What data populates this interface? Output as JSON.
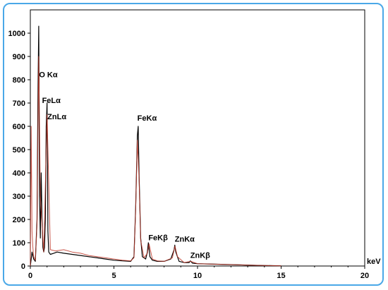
{
  "chart_data": {
    "type": "line",
    "title": "",
    "xlabel": "keV",
    "ylabel": "",
    "xlim": [
      0,
      20
    ],
    "ylim": [
      0,
      1100
    ],
    "xticks": [
      0,
      5,
      10,
      15,
      20
    ],
    "yticks": [
      0,
      100,
      200,
      300,
      400,
      500,
      600,
      700,
      800,
      900,
      1000
    ],
    "grid": false,
    "colors": {
      "frame": "#4aa8e8",
      "series_black": "#000000",
      "series_red": "#c0392b"
    },
    "series": [
      {
        "color": "#000000",
        "x": [
          0.0,
          0.1,
          0.2,
          0.3,
          0.4,
          0.45,
          0.5,
          0.52,
          0.55,
          0.6,
          0.65,
          0.7,
          0.75,
          0.8,
          0.85,
          0.9,
          0.95,
          1.0,
          1.02,
          1.05,
          1.1,
          1.2,
          1.4,
          1.6,
          2.0,
          2.5,
          3.0,
          3.5,
          4.0,
          4.5,
          5.0,
          5.5,
          6.0,
          6.2,
          6.3,
          6.4,
          6.45,
          6.5,
          6.6,
          6.7,
          6.9,
          7.0,
          7.06,
          7.15,
          7.3,
          7.6,
          8.0,
          8.4,
          8.6,
          8.64,
          8.7,
          8.9,
          9.2,
          9.5,
          9.57,
          9.7,
          10.0,
          11.0,
          12.0,
          13.0,
          14.0,
          15.0
        ],
        "y": [
          0,
          60,
          30,
          20,
          200,
          700,
          1030,
          800,
          300,
          120,
          400,
          200,
          80,
          60,
          80,
          200,
          600,
          700,
          500,
          150,
          60,
          50,
          55,
          60,
          55,
          50,
          45,
          40,
          35,
          30,
          25,
          22,
          20,
          40,
          250,
          560,
          600,
          400,
          120,
          40,
          30,
          60,
          100,
          40,
          25,
          20,
          20,
          30,
          70,
          90,
          60,
          20,
          15,
          15,
          22,
          12,
          10,
          8,
          6,
          4,
          2,
          1
        ]
      },
      {
        "color": "#c0392b",
        "x": [
          0.0,
          0.05,
          0.1,
          0.15,
          0.2,
          0.3,
          0.4,
          0.5,
          0.6,
          0.8,
          1.0,
          1.2,
          1.5,
          2.0,
          2.5,
          3.0,
          3.5,
          4.0,
          4.5,
          5.0,
          5.5,
          6.0,
          6.2,
          6.3,
          6.4,
          6.5,
          6.6,
          6.8,
          7.0,
          7.1,
          7.3,
          7.6,
          8.0,
          8.5,
          8.65,
          8.8,
          9.2,
          9.6,
          10.0,
          11.0,
          12.0,
          13.0,
          14.0,
          15.0
        ],
        "y": [
          0,
          600,
          150,
          80,
          40,
          25,
          180,
          900,
          300,
          60,
          650,
          70,
          65,
          70,
          60,
          55,
          45,
          40,
          35,
          30,
          25,
          22,
          35,
          240,
          540,
          380,
          110,
          35,
          55,
          95,
          30,
          22,
          20,
          35,
          85,
          40,
          15,
          20,
          10,
          8,
          6,
          4,
          2,
          1
        ]
      }
    ],
    "annotations": [
      {
        "text": "O Kα",
        "x": 0.52,
        "y": 810
      },
      {
        "text": "FeLα",
        "x": 0.7,
        "y": 700
      },
      {
        "text": "ZnLα",
        "x": 1.02,
        "y": 630
      },
      {
        "text": "FeKα",
        "x": 6.4,
        "y": 625
      },
      {
        "text": "FeKβ",
        "x": 7.06,
        "y": 110
      },
      {
        "text": "ZnKα",
        "x": 8.64,
        "y": 105
      },
      {
        "text": "ZnKβ",
        "x": 9.57,
        "y": 35
      }
    ]
  }
}
